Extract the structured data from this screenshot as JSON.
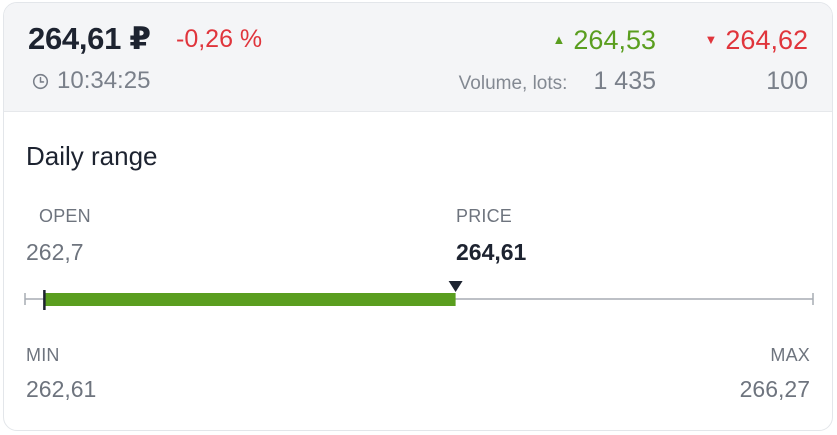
{
  "quote": {
    "price": "264,61 ₽",
    "change": "-0,26 %",
    "time": "10:34:25",
    "bid": "264,53",
    "ask": "264,62",
    "volume_label": "Volume, lots:",
    "bid_volume": "1 435",
    "ask_volume": "100"
  },
  "daily_range": {
    "title": "Daily range",
    "open_label": "OPEN",
    "open_value": "262,7",
    "price_label": "PRICE",
    "price_value": "264,61",
    "min_label": "MIN",
    "min_value": "262,61",
    "max_label": "MAX",
    "max_value": "266,27",
    "min": 262.61,
    "max": 266.27,
    "open": 262.7,
    "price": 264.61
  },
  "icons": {
    "clock": "clock-icon",
    "up": "triangle-up-icon",
    "down": "triangle-down-icon",
    "marker": "price-marker-icon"
  },
  "colors": {
    "up": "#5a9e1f",
    "down": "#e0353c",
    "range_fill": "#5a9e1f",
    "track": "#a7acb3",
    "text_primary": "#1d2330",
    "text_secondary": "#6e747e"
  }
}
